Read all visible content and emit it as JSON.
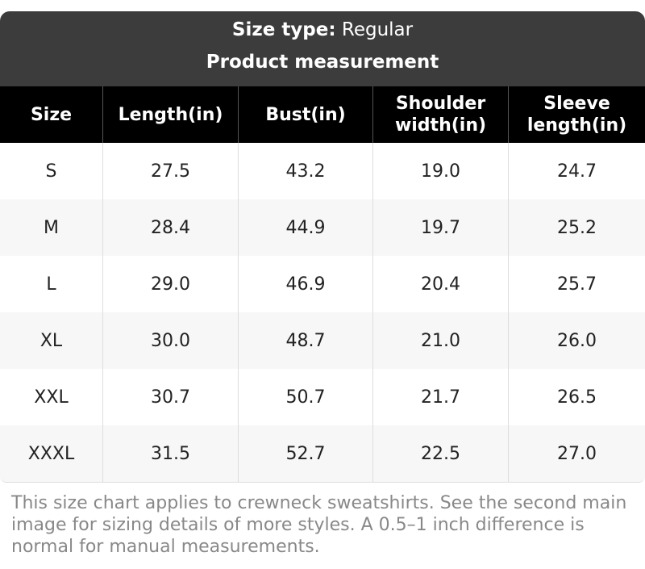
{
  "header": {
    "size_type_label": "Size type:",
    "size_type_value": "Regular",
    "title": "Product measurement"
  },
  "table": {
    "columns": [
      "Size",
      "Length(in)",
      "Bust(in)",
      "Shoulder width(in)",
      "Sleeve length(in)"
    ],
    "rows": [
      [
        "S",
        "27.5",
        "43.2",
        "19.0",
        "24.7"
      ],
      [
        "M",
        "28.4",
        "44.9",
        "19.7",
        "25.2"
      ],
      [
        "L",
        "29.0",
        "46.9",
        "20.4",
        "25.7"
      ],
      [
        "XL",
        "30.0",
        "48.7",
        "21.0",
        "26.0"
      ],
      [
        "XXL",
        "30.7",
        "50.7",
        "21.7",
        "26.5"
      ],
      [
        "XXXL",
        "31.5",
        "52.7",
        "22.5",
        "27.0"
      ]
    ]
  },
  "footnote": "This size chart applies to crewneck sweatshirts. See the second main image for sizing details of more styles. A 0.5–1 inch difference is normal for manual measurements."
}
